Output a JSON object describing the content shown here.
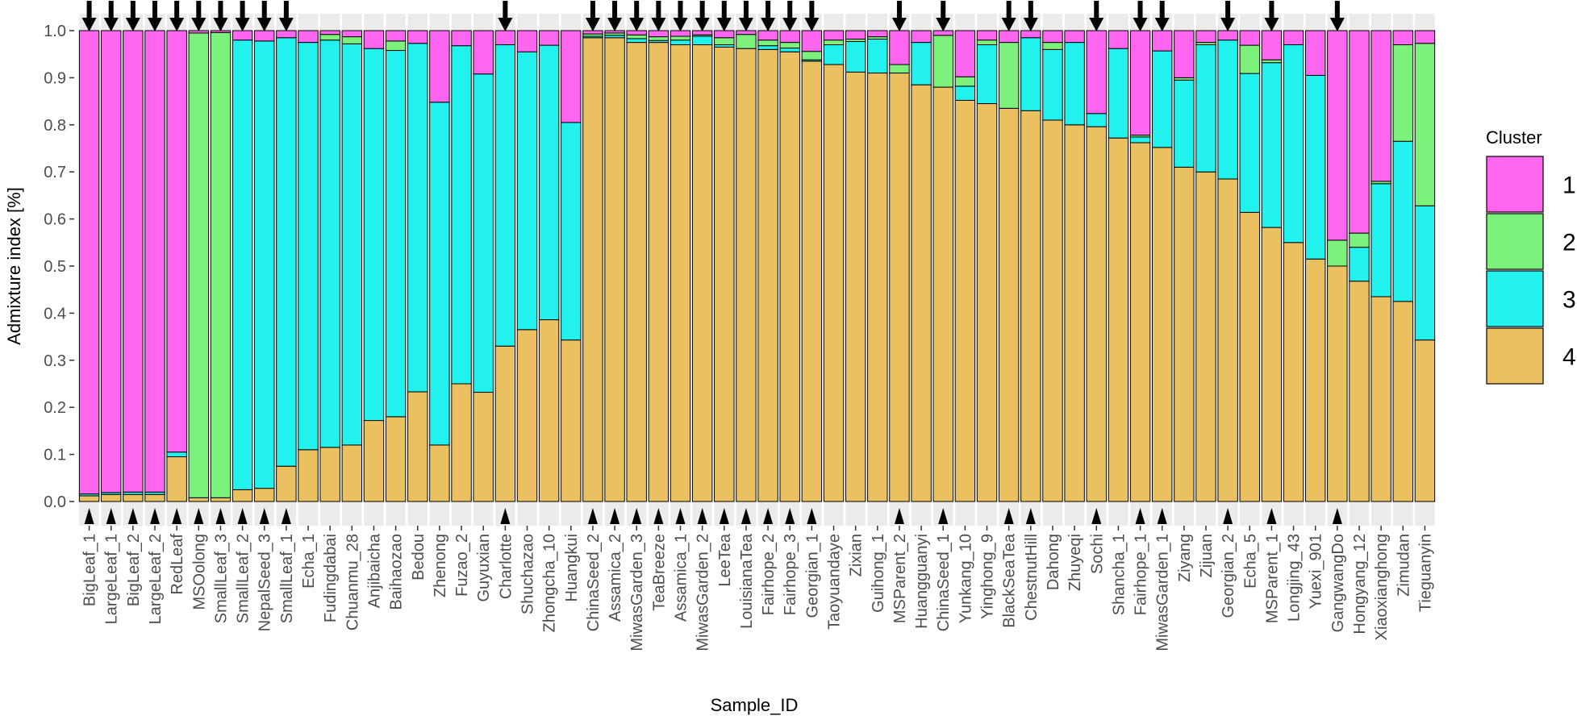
{
  "chart_data": {
    "type": "stacked-bar",
    "title": "",
    "xlabel": "Sample_ID",
    "ylabel": "Admixture index [%]",
    "ylim": [
      0,
      1
    ],
    "yticks": [
      "0.0",
      "0.1",
      "0.2",
      "0.3",
      "0.4",
      "0.5",
      "0.6",
      "0.7",
      "0.8",
      "0.9",
      "1.0"
    ],
    "legend": {
      "title": "Cluster",
      "position": "right",
      "entries": [
        {
          "label": "1",
          "color": "#FF66F0"
        },
        {
          "label": "2",
          "color": "#7CF27C"
        },
        {
          "label": "3",
          "color": "#22F2EE"
        },
        {
          "label": "4",
          "color": "#EBC060"
        }
      ]
    },
    "stack_order_bottom_to_top": [
      "4",
      "3",
      "2",
      "1"
    ],
    "categories": [
      "BigLeaf_1",
      "LargeLeaf_1",
      "BigLeaf_2",
      "LargeLeaf_2",
      "RedLeaf",
      "MSOolong",
      "SmallLeaf_3",
      "SmallLeaf_2",
      "NepalSeed_3",
      "SmallLeaf_1",
      "Echa_1",
      "Fudingdabai",
      "Chuanmu_28",
      "Anjibaicha",
      "Baihaozao",
      "Bedou",
      "Zhenong",
      "Fuzao_2",
      "Guyuxian",
      "Charlotte",
      "Shuchazao",
      "Zhongcha_10",
      "Huangkui",
      "ChinaSeed_2",
      "Assamica_2",
      "MiwasGarden_3",
      "TeaBreeze",
      "Assamica_1",
      "MiwasGarden_2",
      "LeeTea",
      "LouisianaTea",
      "Fairhope_2",
      "Fairhope_3",
      "Georgian_1",
      "Taoyuandaye",
      "Zixian",
      "Guihong_1",
      "MSParent_2",
      "Huangguanyi",
      "ChinaSeed_1",
      "Yunkang_10",
      "Yinghong_9",
      "BlackSeaTea",
      "ChestnutHill",
      "Dahong",
      "Zhuyeqi",
      "Sochi",
      "Shancha_1",
      "Fairhope_1",
      "MiwasGarden_1",
      "Ziyang",
      "Zijuan",
      "Georgian_2",
      "Echa_5",
      "MSParent_1",
      "Longjing_43",
      "Yuexi_901",
      "GangwangDo",
      "Hongyang_12",
      "Xiaoxianghong",
      "Zimudan",
      "Tieguanyin"
    ],
    "series": [
      {
        "name": "4",
        "values": [
          0.012,
          0.015,
          0.015,
          0.015,
          0.095,
          0.008,
          0.008,
          0.025,
          0.028,
          0.075,
          0.11,
          0.115,
          0.12,
          0.172,
          0.18,
          0.233,
          0.12,
          0.25,
          0.232,
          0.33,
          0.365,
          0.386,
          0.343,
          0.985,
          0.985,
          0.975,
          0.975,
          0.97,
          0.97,
          0.965,
          0.962,
          0.96,
          0.955,
          0.935,
          0.928,
          0.912,
          0.91,
          0.91,
          0.885,
          0.88,
          0.852,
          0.845,
          0.835,
          0.83,
          0.81,
          0.8,
          0.796,
          0.772,
          0.762,
          0.752,
          0.71,
          0.7,
          0.685,
          0.614,
          0.582,
          0.55,
          0.515,
          0.5,
          0.468,
          0.435,
          0.425,
          0.343
        ]
      },
      {
        "name": "3",
        "values": [
          0.004,
          0.004,
          0.005,
          0.005,
          0.01,
          0.0,
          0.0,
          0.955,
          0.95,
          0.91,
          0.865,
          0.865,
          0.852,
          0.79,
          0.778,
          0.74,
          0.728,
          0.718,
          0.676,
          0.64,
          0.59,
          0.583,
          0.462,
          0.003,
          0.005,
          0.008,
          0.004,
          0.01,
          0.018,
          0.005,
          0.0,
          0.008,
          0.008,
          0.003,
          0.042,
          0.065,
          0.072,
          0.0,
          0.09,
          0.0,
          0.03,
          0.125,
          0.0,
          0.155,
          0.15,
          0.175,
          0.028,
          0.19,
          0.012,
          0.205,
          0.185,
          0.27,
          0.295,
          0.295,
          0.35,
          0.42,
          0.39,
          0.0,
          0.072,
          0.24,
          0.34,
          0.285
        ]
      },
      {
        "name": "2",
        "values": [
          0.0,
          0.0,
          0.0,
          0.0,
          0.0,
          0.987,
          0.988,
          0.0,
          0.0,
          0.0,
          0.0,
          0.012,
          0.015,
          0.0,
          0.02,
          0.0,
          0.0,
          0.0,
          0.0,
          0.0,
          0.0,
          0.0,
          0.0,
          0.005,
          0.005,
          0.008,
          0.008,
          0.008,
          0.003,
          0.015,
          0.03,
          0.012,
          0.012,
          0.018,
          0.01,
          0.005,
          0.005,
          0.018,
          0.0,
          0.11,
          0.02,
          0.01,
          0.14,
          0.0,
          0.015,
          0.0,
          0.0,
          0.0,
          0.004,
          0.0,
          0.005,
          0.005,
          0.0,
          0.06,
          0.006,
          0.0,
          0.0,
          0.055,
          0.03,
          0.005,
          0.205,
          0.345
        ]
      },
      {
        "name": "1",
        "values": [
          0.984,
          0.981,
          0.98,
          0.98,
          0.895,
          0.005,
          0.004,
          0.02,
          0.022,
          0.015,
          0.025,
          0.008,
          0.013,
          0.038,
          0.022,
          0.027,
          0.152,
          0.032,
          0.092,
          0.03,
          0.045,
          0.031,
          0.195,
          0.007,
          0.005,
          0.009,
          0.013,
          0.012,
          0.009,
          0.015,
          0.008,
          0.02,
          0.025,
          0.044,
          0.02,
          0.018,
          0.013,
          0.072,
          0.025,
          0.01,
          0.098,
          0.02,
          0.025,
          0.015,
          0.025,
          0.025,
          0.176,
          0.038,
          0.222,
          0.043,
          0.1,
          0.025,
          0.02,
          0.031,
          0.062,
          0.03,
          0.095,
          0.445,
          0.43,
          0.32,
          0.03,
          0.027
        ]
      }
    ],
    "arrow_marked_samples": [
      "BigLeaf_1",
      "LargeLeaf_1",
      "BigLeaf_2",
      "LargeLeaf_2",
      "RedLeaf",
      "MSOolong",
      "SmallLeaf_3",
      "SmallLeaf_2",
      "NepalSeed_3",
      "SmallLeaf_1",
      "Charlotte",
      "ChinaSeed_2",
      "Assamica_2",
      "MiwasGarden_3",
      "TeaBreeze",
      "Assamica_1",
      "MiwasGarden_2",
      "LeeTea",
      "LouisianaTea",
      "Fairhope_2",
      "Fairhope_3",
      "Georgian_1",
      "MSParent_2",
      "ChinaSeed_1",
      "BlackSeaTea",
      "ChestnutHill",
      "Sochi",
      "Fairhope_1",
      "MiwasGarden_1",
      "Georgian_2",
      "MSParent_1",
      "GangwangDo"
    ]
  },
  "colors": {
    "panel_background": "#EBEBEB",
    "bar_outline": "#000000",
    "arrow": "#000000"
  }
}
